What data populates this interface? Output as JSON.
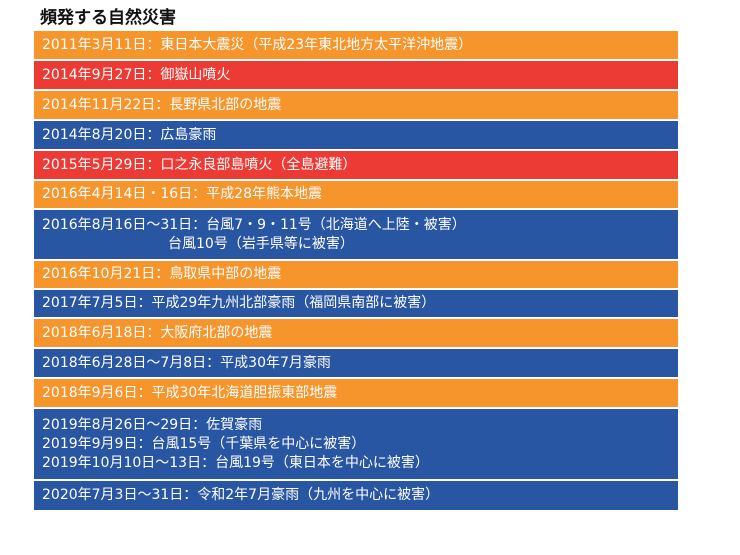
{
  "title": "頻発する自然災害",
  "colors": {
    "orange": "#f7952d",
    "red": "#ec3a35",
    "blue": "#2856a2"
  },
  "events": [
    {
      "color": "orange",
      "lines": [
        "2011年3月11日：東日本大震災（平成23年東北地方太平洋沖地震）"
      ]
    },
    {
      "color": "red",
      "lines": [
        "2014年9月27日：御嶽山噴火"
      ]
    },
    {
      "color": "orange",
      "lines": [
        "2014年11月22日：長野県北部の地震"
      ]
    },
    {
      "color": "blue",
      "lines": [
        "2014年8月20日：広島豪雨"
      ]
    },
    {
      "color": "red",
      "lines": [
        "2015年5月29日：口之永良部島噴火（全島避難）"
      ]
    },
    {
      "color": "orange",
      "lines": [
        "2016年4月14日・16日：平成28年熊本地震"
      ]
    },
    {
      "color": "blue",
      "lines": [
        "2016年8月16日〜31日：台風7・9・11号（北海道へ上陸・被害）",
        "　　　　　　　　　台風10号（岩手県等に被害）"
      ]
    },
    {
      "color": "orange",
      "lines": [
        "2016年10月21日：鳥取県中部の地震"
      ]
    },
    {
      "color": "blue",
      "lines": [
        "2017年7月5日：平成29年九州北部豪雨（福岡県南部に被害）"
      ]
    },
    {
      "color": "orange",
      "lines": [
        "2018年6月18日：大阪府北部の地震"
      ]
    },
    {
      "color": "blue",
      "lines": [
        "2018年6月28日〜7月8日：平成30年7月豪雨"
      ]
    },
    {
      "color": "orange",
      "lines": [
        "2018年9月6日：平成30年北海道胆振東部地震"
      ]
    },
    {
      "color": "blue",
      "lines": [
        "2019年8月26日〜29日：佐賀豪雨",
        "2019年9月9日：台風15号（千葉県を中心に被害）",
        "2019年10月10日〜13日：台風19号（東日本を中心に被害）"
      ]
    },
    {
      "color": "blue",
      "lines": [
        "2020年7月3日〜31日：令和2年7月豪雨（九州を中心に被害）"
      ]
    }
  ]
}
